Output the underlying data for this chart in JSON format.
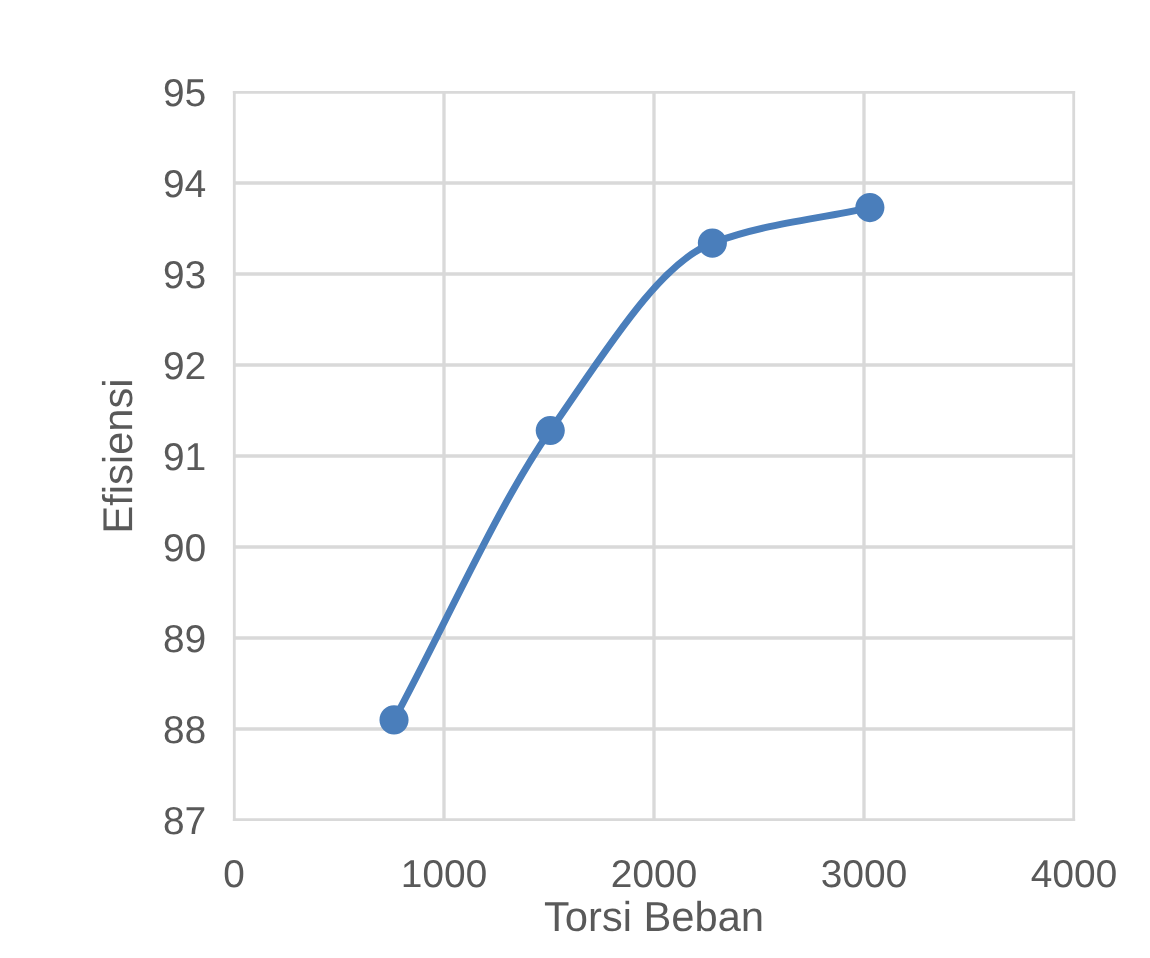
{
  "chart_data": {
    "type": "line",
    "xlabel": "Torsi Beban",
    "ylabel": "Efisiensi",
    "x": [
      762,
      1506,
      2278,
      3028
    ],
    "series": [
      {
        "color": "#4a7ebb",
        "values": [
          88.1,
          91.28,
          93.34,
          93.73
        ]
      }
    ],
    "xlim": [
      0,
      4000
    ],
    "xticks": [
      0,
      1000,
      2000,
      3000,
      4000
    ],
    "ylim": [
      87,
      95
    ],
    "yticks": [
      87,
      88,
      89,
      90,
      91,
      92,
      93,
      94,
      95
    ],
    "grid": true,
    "marker": "circle",
    "line_style": "solid"
  }
}
